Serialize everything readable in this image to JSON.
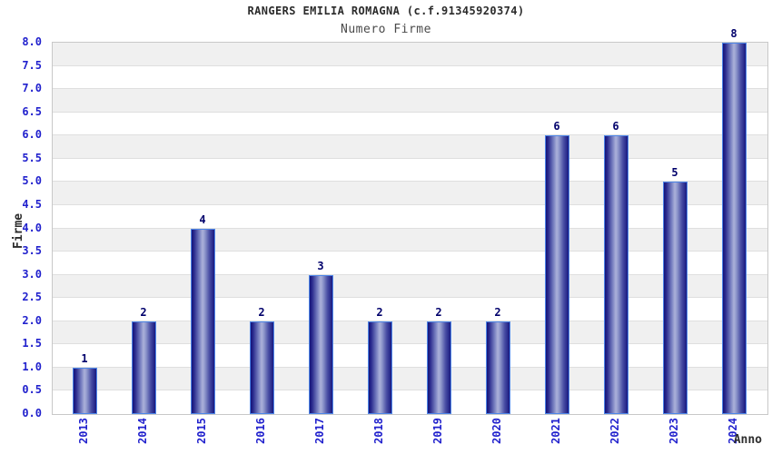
{
  "header": {
    "title": "RANGERS EMILIA ROMAGNA (c.f.91345920374)",
    "subtitle": "Numero Firme"
  },
  "chart_data": {
    "type": "bar",
    "title": "RANGERS EMILIA ROMAGNA (c.f.91345920374)",
    "subtitle": "Numero Firme",
    "categories": [
      "2013",
      "2014",
      "2015",
      "2016",
      "2017",
      "2018",
      "2019",
      "2020",
      "2021",
      "2022",
      "2023",
      "2024"
    ],
    "values": [
      1,
      2,
      4,
      2,
      3,
      2,
      2,
      2,
      6,
      6,
      5,
      8
    ],
    "value_labels": [
      "1",
      "2",
      "4",
      "2",
      "3",
      "2",
      "2",
      "2",
      "6",
      "6",
      "5",
      "8"
    ],
    "xlabel": "Anno",
    "ylabel": "Firme",
    "ylim": [
      0,
      8
    ],
    "ytick_step": 0.5,
    "ytick_format_decimals": 1,
    "grid": "horizontal-bands",
    "legend": "none",
    "colors": {
      "tick_label": "#2121cd",
      "value_label": "#00006b",
      "title_color": "#2b2b2b",
      "subtitle_color": "#4a4a4a",
      "axis_label_color": "#2e2e2e",
      "band_gray": "#f0f0f0",
      "band_white": "#ffffff",
      "gridline": "#dfdfdf",
      "plot_border": "#c8c8c8",
      "bar_border": "#4e86e8",
      "bar_gradient": [
        [
          "#14147b",
          0
        ],
        [
          "#28288c",
          10
        ],
        [
          "#7078bc",
          32
        ],
        [
          "#abb1da",
          48
        ],
        [
          "#9099cc",
          58
        ],
        [
          "#4a4fa5",
          78
        ],
        [
          "#191980",
          100
        ]
      ]
    }
  }
}
